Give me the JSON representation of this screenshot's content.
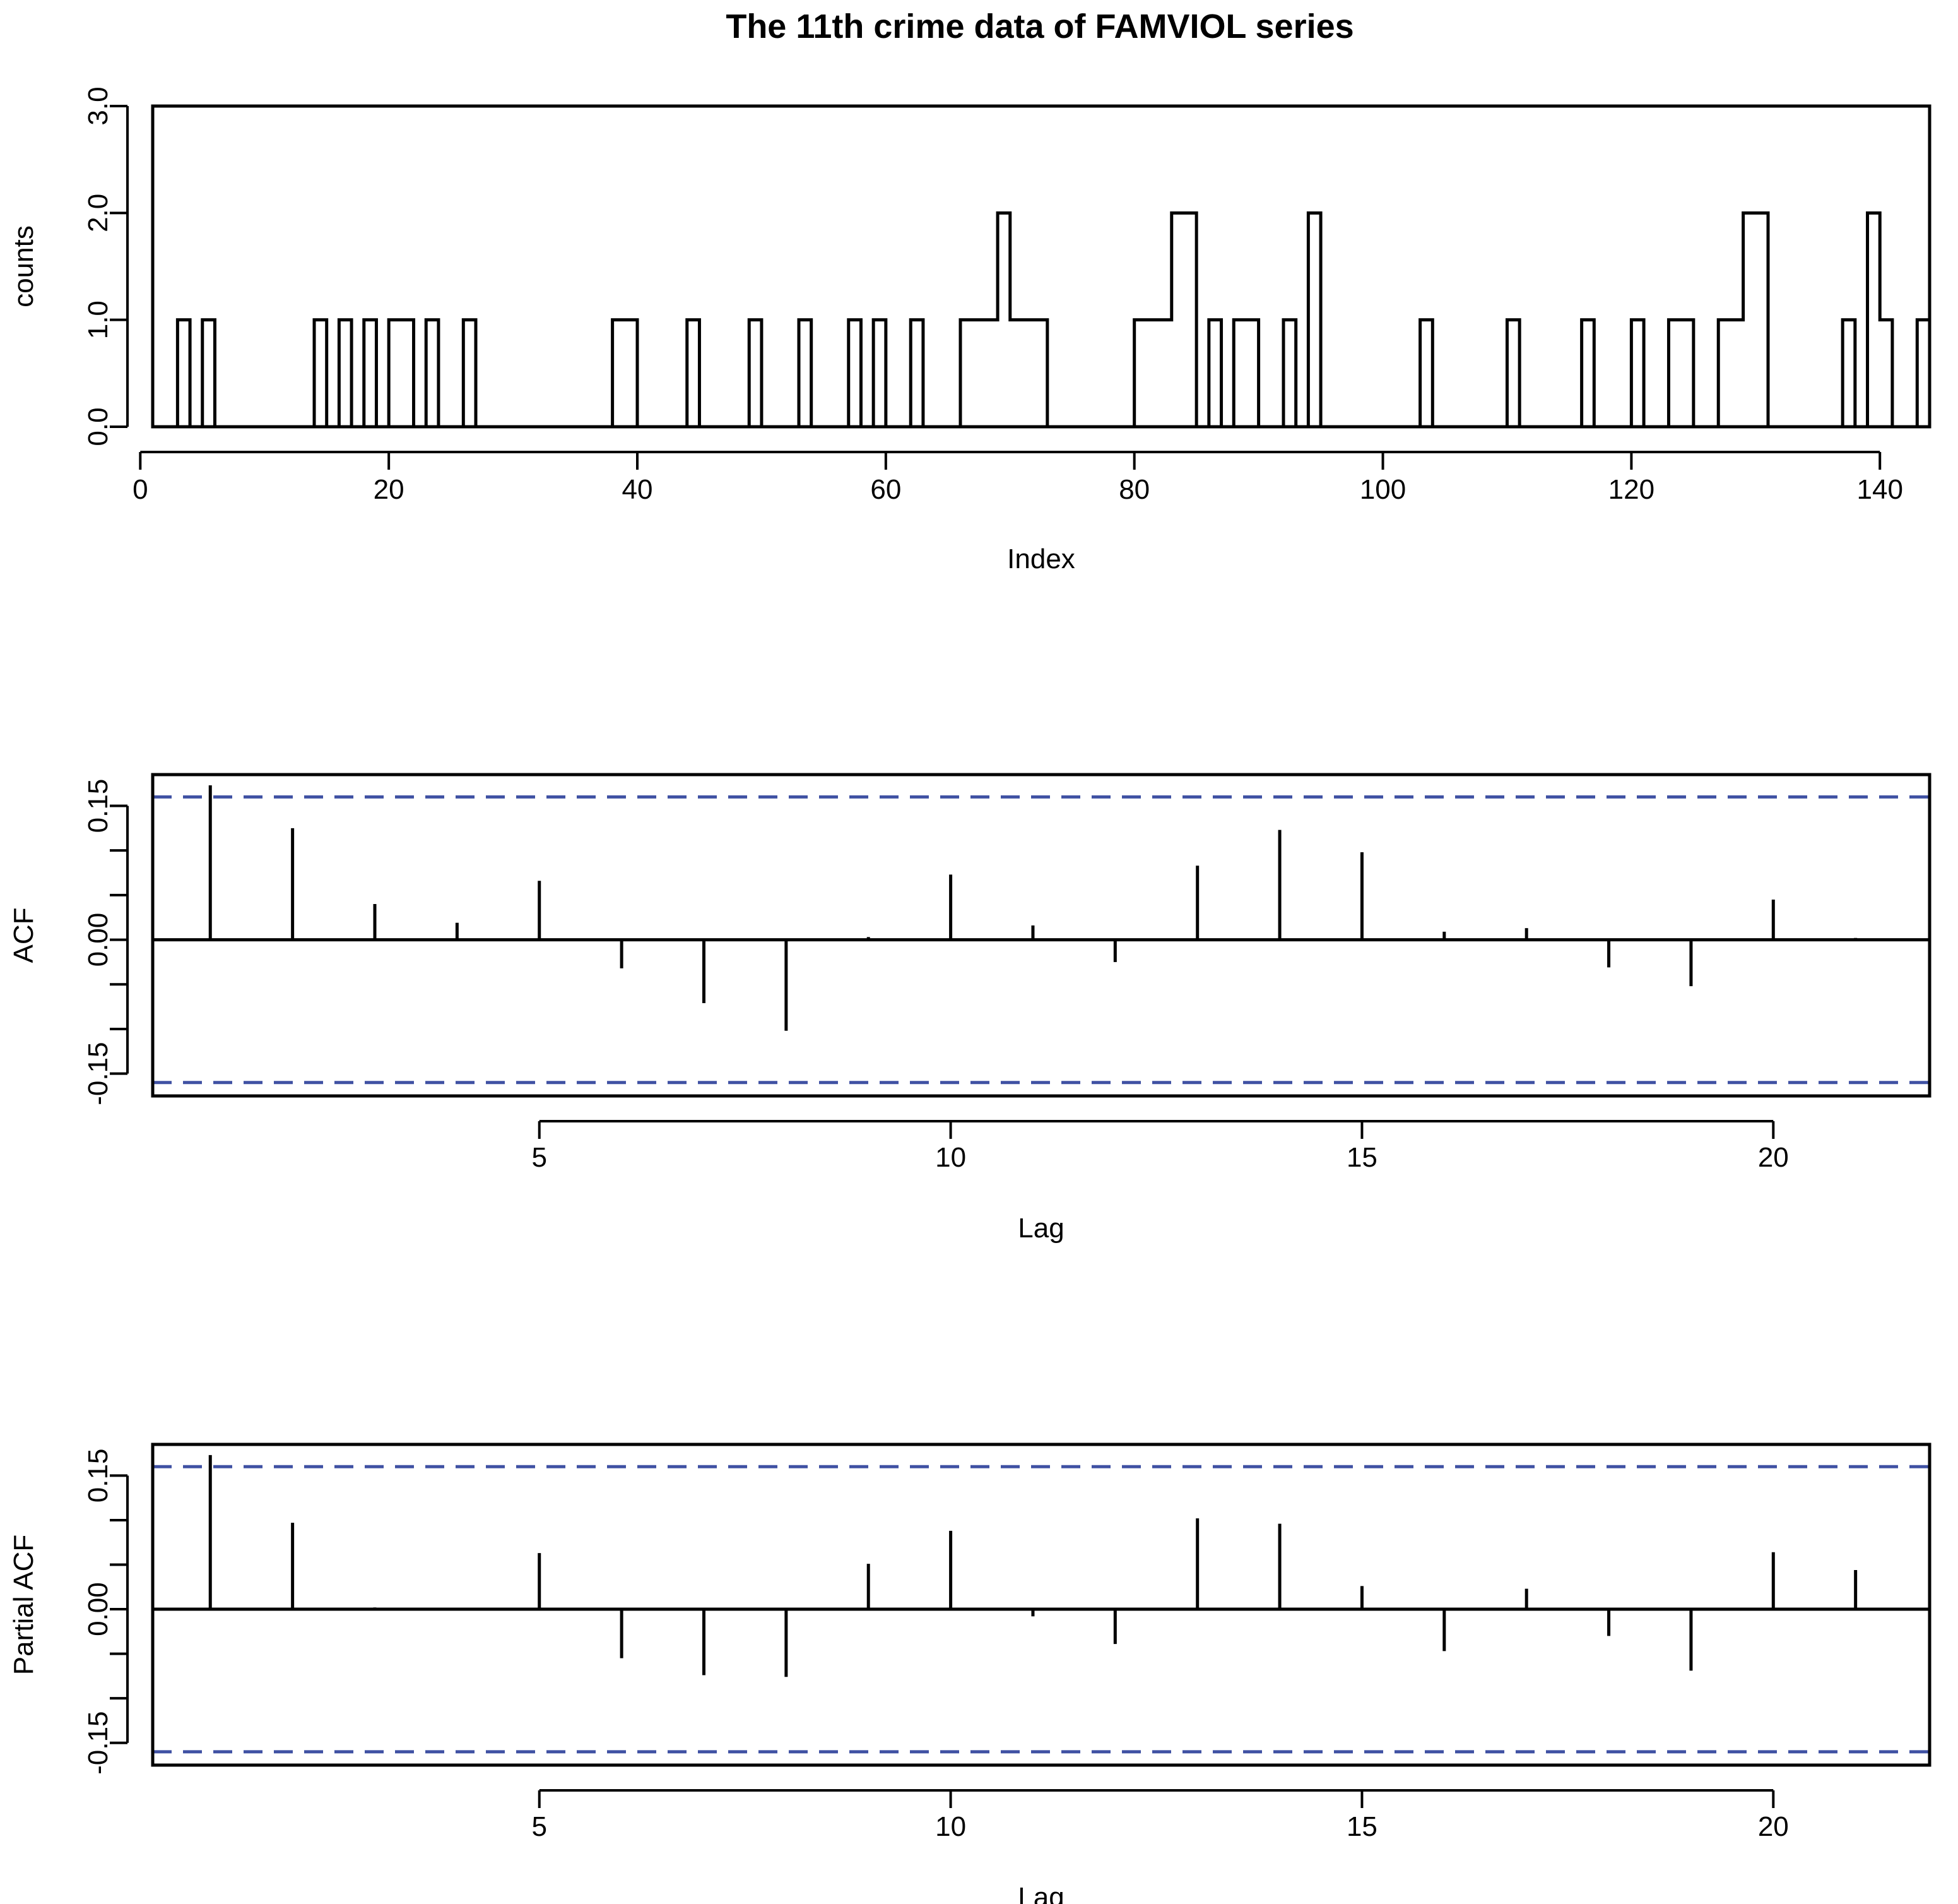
{
  "figure_title": "The 11th crime data of FAMVIOL series",
  "colors": {
    "series": "#000000",
    "confidence_band": "#3f51a3",
    "frame": "#000000"
  },
  "chart_data": [
    {
      "type": "line",
      "subtype": "step",
      "title": "The 11th crime data of FAMVIOL series",
      "xlabel": "Index",
      "ylabel": "counts",
      "xlim": [
        1,
        144
      ],
      "ylim": [
        0,
        3
      ],
      "xticks": [
        0,
        20,
        40,
        60,
        80,
        100,
        120,
        140
      ],
      "xtick_labels": [
        "0",
        "20",
        "40",
        "60",
        "80",
        "100",
        "120",
        "140"
      ],
      "yticks": [
        0,
        1,
        2,
        3
      ],
      "ytick_labels": [
        "0.0",
        "1.0",
        "2.0",
        "3.0"
      ],
      "x": [
        1,
        2,
        3,
        4,
        5,
        6,
        7,
        8,
        9,
        10,
        11,
        12,
        13,
        14,
        15,
        16,
        17,
        18,
        19,
        20,
        21,
        22,
        23,
        24,
        25,
        26,
        27,
        28,
        29,
        30,
        31,
        32,
        33,
        34,
        35,
        36,
        37,
        38,
        39,
        40,
        41,
        42,
        43,
        44,
        45,
        46,
        47,
        48,
        49,
        50,
        51,
        52,
        53,
        54,
        55,
        56,
        57,
        58,
        59,
        60,
        61,
        62,
        63,
        64,
        65,
        66,
        67,
        68,
        69,
        70,
        71,
        72,
        73,
        74,
        75,
        76,
        77,
        78,
        79,
        80,
        81,
        82,
        83,
        84,
        85,
        86,
        87,
        88,
        89,
        90,
        91,
        92,
        93,
        94,
        95,
        96,
        97,
        98,
        99,
        100,
        101,
        102,
        103,
        104,
        105,
        106,
        107,
        108,
        109,
        110,
        111,
        112,
        113,
        114,
        115,
        116,
        117,
        118,
        119,
        120,
        121,
        122,
        123,
        124,
        125,
        126,
        127,
        128,
        129,
        130,
        131,
        132,
        133,
        134,
        135,
        136,
        137,
        138,
        139,
        140,
        141,
        142,
        143,
        144
      ],
      "values": [
        0,
        0,
        1,
        0,
        1,
        0,
        0,
        0,
        0,
        0,
        0,
        0,
        0,
        1,
        0,
        1,
        0,
        1,
        0,
        1,
        1,
        0,
        1,
        0,
        0,
        1,
        0,
        0,
        0,
        0,
        0,
        0,
        0,
        0,
        0,
        0,
        0,
        1,
        1,
        0,
        0,
        0,
        0,
        1,
        0,
        0,
        0,
        0,
        1,
        0,
        0,
        0,
        1,
        0,
        0,
        0,
        1,
        0,
        1,
        0,
        0,
        1,
        0,
        0,
        0,
        1,
        1,
        1,
        2,
        1,
        1,
        1,
        0,
        0,
        0,
        0,
        0,
        0,
        0,
        1,
        1,
        1,
        2,
        2,
        0,
        1,
        0,
        1,
        1,
        0,
        0,
        1,
        0,
        2,
        0,
        0,
        0,
        0,
        0,
        0,
        0,
        0,
        1,
        0,
        0,
        0,
        0,
        0,
        0,
        1,
        0,
        0,
        0,
        0,
        0,
        1,
        0,
        0,
        0,
        1,
        0,
        0,
        1,
        1,
        0,
        0,
        1,
        1,
        2,
        2,
        0,
        0,
        0,
        0,
        0,
        0,
        1,
        0,
        2,
        1,
        0,
        0,
        1,
        3
      ]
    },
    {
      "type": "bar",
      "subtype": "correlogram",
      "xlabel": "Lag",
      "ylabel": "ACF",
      "xlim": [
        0.3,
        21.9
      ],
      "ylim": [
        -0.175,
        0.185
      ],
      "xticks": [
        5,
        10,
        15,
        20
      ],
      "xtick_labels": [
        "5",
        "10",
        "15",
        "20"
      ],
      "yticks": [
        -0.15,
        -0.1,
        -0.05,
        0,
        0.05,
        0.1,
        0.15
      ],
      "ytick_labels": [
        "-0.15",
        "",
        "",
        "0.00",
        "",
        "",
        "0.15"
      ],
      "confidence_bound": 0.16,
      "lags": [
        1,
        2,
        3,
        4,
        5,
        6,
        7,
        8,
        9,
        10,
        11,
        12,
        13,
        14,
        15,
        16,
        17,
        18,
        19,
        20,
        21
      ],
      "values": [
        0.173,
        0.125,
        0.04,
        0.019,
        0.066,
        -0.032,
        -0.071,
        -0.102,
        0.003,
        0.073,
        0.016,
        -0.025,
        0.083,
        0.123,
        0.098,
        0.009,
        0.013,
        -0.031,
        -0.052,
        0.045,
        0.002
      ]
    },
    {
      "type": "bar",
      "subtype": "correlogram",
      "xlabel": "Lag",
      "ylabel": "Partial ACF",
      "xlim": [
        0.3,
        21.9
      ],
      "ylim": [
        -0.175,
        0.185
      ],
      "xticks": [
        5,
        10,
        15,
        20
      ],
      "xtick_labels": [
        "5",
        "10",
        "15",
        "20"
      ],
      "yticks": [
        -0.15,
        -0.1,
        -0.05,
        0,
        0.05,
        0.1,
        0.15
      ],
      "ytick_labels": [
        "-0.15",
        "",
        "",
        "0.00",
        "",
        "",
        "0.15"
      ],
      "confidence_bound": 0.16,
      "lags": [
        1,
        2,
        3,
        4,
        5,
        6,
        7,
        8,
        9,
        10,
        11,
        12,
        13,
        14,
        15,
        16,
        17,
        18,
        19,
        20,
        21
      ],
      "values": [
        0.173,
        0.097,
        0.002,
        -0.001,
        0.063,
        -0.055,
        -0.074,
        -0.076,
        0.051,
        0.088,
        -0.008,
        -0.039,
        0.102,
        0.096,
        0.026,
        -0.047,
        0.023,
        -0.03,
        -0.069,
        0.064,
        0.044
      ]
    }
  ]
}
